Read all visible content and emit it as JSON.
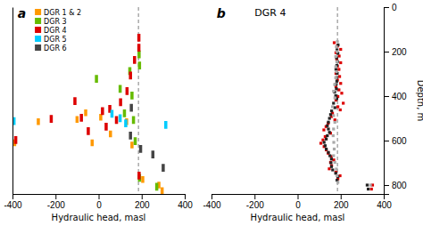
{
  "chart_data": [
    {
      "type": "range",
      "label": "a",
      "xlabel": "Hydraulic head, masl",
      "xlim": [
        -400,
        400
      ],
      "xticks": [
        -400,
        -200,
        0,
        200,
        400
      ],
      "ylim": [
        0,
        840
      ],
      "tick_labels": "x",
      "vline": 185,
      "legend": "upper left",
      "series": [
        {
          "name": "DGR 1 & 2",
          "color": "#FF9900",
          "x": [
            -390,
            -280,
            -100,
            -60,
            -30,
            10,
            55,
            130,
            155,
            205,
            280,
            295
          ],
          "low": [
            595,
            500,
            490,
            460,
            595,
            480,
            555,
            500,
            605,
            760,
            785,
            810
          ],
          "high": [
            625,
            530,
            520,
            490,
            625,
            510,
            585,
            530,
            635,
            790,
            815,
            840
          ]
        },
        {
          "name": "DGR 3",
          "color": "#66BB00",
          "x": [
            -10,
            100,
            120,
            145,
            155,
            162,
            170,
            188,
            190,
            190,
            270
          ],
          "low": [
            305,
            350,
            460,
            270,
            380,
            490,
            585,
            195,
            245,
            750,
            790
          ],
          "high": [
            340,
            385,
            495,
            305,
            415,
            525,
            620,
            230,
            280,
            785,
            825
          ]
        },
        {
          "name": "DGR 4",
          "color": "#DD0000",
          "x": [
            -385,
            -220,
            -110,
            -80,
            -48,
            18,
            35,
            52,
            83,
            102,
            132,
            148,
            167,
            187,
            187,
            188
          ],
          "low": [
            580,
            485,
            405,
            480,
            540,
            450,
            520,
            440,
            490,
            410,
            360,
            290,
            220,
            165,
            120,
            740
          ],
          "high": [
            615,
            520,
            440,
            515,
            575,
            485,
            555,
            475,
            525,
            445,
            395,
            325,
            255,
            200,
            155,
            775
          ]
        },
        {
          "name": "DGR 5",
          "color": "#00CCFF",
          "x": [
            -393,
            62,
            100,
            126,
            312
          ],
          "low": [
            495,
            462,
            482,
            505,
            512
          ],
          "high": [
            530,
            497,
            517,
            540,
            547
          ]
        },
        {
          "name": "DGR 6",
          "color": "#444444",
          "x": [
            152,
            148,
            195,
            252,
            300
          ],
          "low": [
            435,
            560,
            620,
            645,
            705
          ],
          "high": [
            470,
            595,
            655,
            680,
            740
          ]
        }
      ]
    },
    {
      "type": "scatter",
      "label": "b",
      "title": "DGR 4",
      "xlabel": "Hydraulic head, masl",
      "ylabel": "Depth, m",
      "xlim": [
        -400,
        400
      ],
      "xticks": [
        -400,
        -200,
        0,
        200,
        400
      ],
      "ylim": [
        0,
        840
      ],
      "yticks": [
        0,
        200,
        400,
        600,
        800
      ],
      "vline": 185,
      "marker": "square",
      "series": [
        {
          "color": "#DD0000",
          "x": [
            170,
            185,
            200,
            178,
            193,
            182,
            200,
            185,
            192,
            178,
            195,
            185,
            200,
            178,
            192,
            205,
            187,
            178,
            212,
            187,
            198,
            162,
            157,
            173,
            142,
            132,
            122,
            153,
            128,
            118,
            108,
            123,
            133,
            142,
            157,
            168,
            153,
            158,
            147,
            178,
            197,
            187,
            348,
            343
          ],
          "values": [
            160,
            175,
            190,
            205,
            220,
            235,
            250,
            265,
            280,
            298,
            312,
            328,
            343,
            358,
            372,
            387,
            402,
            418,
            432,
            448,
            462,
            477,
            492,
            507,
            522,
            537,
            552,
            567,
            582,
            597,
            612,
            627,
            642,
            657,
            672,
            687,
            698,
            713,
            727,
            742,
            758,
            772,
            800,
            818
          ]
        },
        {
          "color": "#222222",
          "x": [
            188,
            183,
            187,
            181,
            185,
            182,
            178,
            184,
            180,
            182,
            177,
            180,
            172,
            177,
            182,
            167,
            173,
            158,
            153,
            148,
            143,
            138,
            143,
            148,
            138,
            133,
            123,
            128,
            133,
            143,
            150,
            157,
            155,
            157,
            163,
            177,
            187,
            183,
            323,
            328
          ],
          "values": [
            170,
            192,
            208,
            228,
            245,
            262,
            280,
            298,
            317,
            333,
            348,
            367,
            382,
            398,
            412,
            432,
            452,
            467,
            483,
            500,
            517,
            533,
            548,
            563,
            578,
            593,
            608,
            623,
            638,
            653,
            668,
            683,
            700,
            717,
            732,
            747,
            762,
            778,
            800,
            818
          ]
        },
        {
          "color": "#AAAAAA",
          "x": [
            185,
            180,
            182,
            177,
            182,
            177,
            180,
            177,
            172,
            167,
            173,
            162,
            167,
            173,
            167,
            165,
            168,
            170,
            167,
            173,
            180,
            183,
            187,
            338
          ],
          "values": [
            155,
            178,
            200,
            222,
            245,
            268,
            290,
            318,
            348,
            378,
            408,
            448,
            488,
            518,
            548,
            578,
            608,
            638,
            668,
            698,
            728,
            758,
            788,
            800
          ]
        }
      ]
    }
  ]
}
